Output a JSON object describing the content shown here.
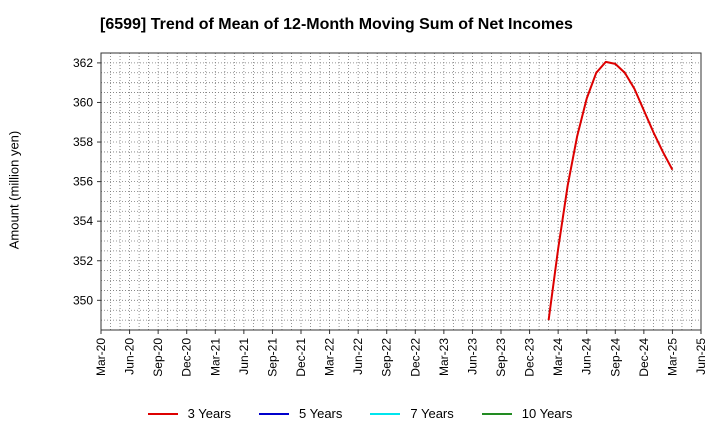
{
  "chart_data": {
    "type": "line",
    "title": "[6599]  Trend of Mean of 12-Month Moving Sum of Net Incomes",
    "ylabel": "Amount (million yen)",
    "xlabel": "",
    "x_tick_labels": [
      "Mar-20",
      "Jun-20",
      "Sep-20",
      "Dec-20",
      "Mar-21",
      "Jun-21",
      "Sep-21",
      "Dec-21",
      "Mar-22",
      "Jun-22",
      "Sep-22",
      "Dec-22",
      "Mar-23",
      "Jun-23",
      "Sep-23",
      "Dec-23",
      "Mar-24",
      "Jun-24",
      "Sep-24",
      "Dec-24",
      "Mar-25",
      "Jun-25"
    ],
    "y_ticks": [
      350,
      352,
      354,
      356,
      358,
      360,
      362
    ],
    "ylim": [
      348.5,
      362.5
    ],
    "grid": true,
    "legend_position": "bottom",
    "series": [
      {
        "name": "3 Years",
        "color": "#dd0000",
        "x": [
          "2024-02",
          "2024-03",
          "2024-04",
          "2024-05",
          "2024-06",
          "2024-07",
          "2024-08",
          "2024-09",
          "2024-10",
          "2024-11",
          "2024-12",
          "2025-01",
          "2025-02",
          "2025-03"
        ],
        "values": [
          349.0,
          352.6,
          355.8,
          358.3,
          360.2,
          361.5,
          362.05,
          361.95,
          361.5,
          360.7,
          359.6,
          358.5,
          357.5,
          356.6
        ]
      },
      {
        "name": "5 Years",
        "color": "#0000cc",
        "x": [],
        "values": []
      },
      {
        "name": "7 Years",
        "color": "#00e5ee",
        "x": [],
        "values": []
      },
      {
        "name": "10 Years",
        "color": "#228b22",
        "x": [],
        "values": []
      }
    ]
  }
}
